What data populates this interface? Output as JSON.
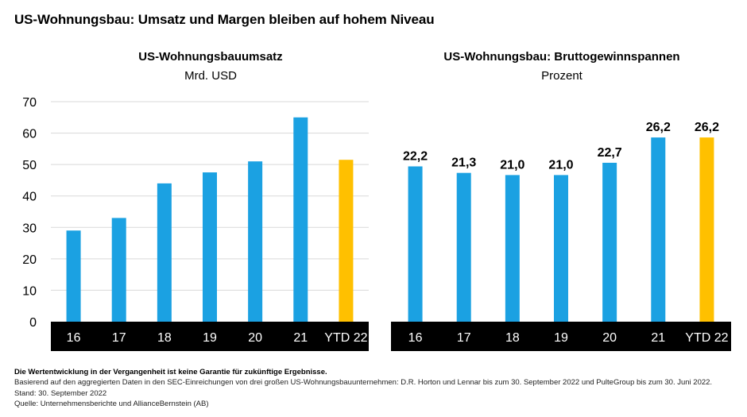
{
  "title": "US-Wohnungsbau: Umsatz und Margen bleiben auf hohem Niveau",
  "colors": {
    "bar": "#1ba1e2",
    "highlight": "#ffc000",
    "axis_band": "#000000",
    "axis_text": "#ffffff",
    "grid": "#d9d9d9"
  },
  "chart_data": [
    {
      "type": "bar",
      "title": "US-Wohnungsbauumsatz",
      "ylabel": "Mrd. USD",
      "categories": [
        "16",
        "17",
        "18",
        "19",
        "20",
        "21",
        "YTD 22"
      ],
      "values": [
        29,
        33,
        44,
        47.5,
        51,
        65,
        51.5
      ],
      "ylim": [
        0,
        70
      ],
      "yticks": [
        "0",
        "10",
        "20",
        "30",
        "40",
        "50",
        "60",
        "70"
      ],
      "highlight_index": 6,
      "grid": true
    },
    {
      "type": "bar",
      "title": "US-Wohnungsbau: Bruttogewinnspannen",
      "ylabel": "Prozent",
      "categories": [
        "16",
        "17",
        "18",
        "19",
        "20",
        "21",
        "YTD 22"
      ],
      "values": [
        22.2,
        21.3,
        21.0,
        21.0,
        22.7,
        26.2,
        26.2
      ],
      "data_labels": [
        "22,2",
        "21,3",
        "21,0",
        "21,0",
        "22,7",
        "26,2",
        "26,2"
      ],
      "highlight_index": 6,
      "grid": false
    }
  ],
  "footer": {
    "disclaimer": "Die Wertentwicklung in der Vergangenheit ist keine Garantie für zukünftige Ergebnisse.",
    "basis": "Basierend auf den aggregierten Daten in den SEC-Einreichungen von drei großen US-Wohnungsbauunternehmen: D.R. Horton und Lennar bis zum 30. September 2022 und PulteGroup bis zum 30. Juni 2022.",
    "date": "Stand: 30. September 2022",
    "source": "Quelle: Unternehmensberichte und AllianceBernstein (AB)"
  }
}
